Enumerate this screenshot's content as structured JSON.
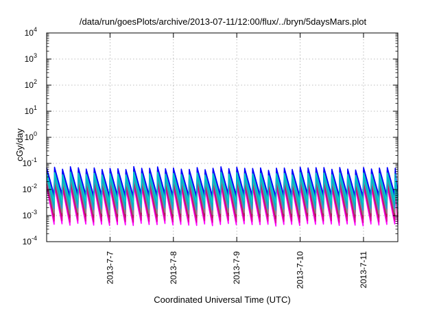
{
  "chart_data": {
    "type": "line",
    "title": "/data/run/goesPlots/archive/2013-07-11/12:00/flux/../bryn/5daysMars.plot",
    "xlabel": "Coordinated Universal Time (UTC)",
    "ylabel": "cGy/day",
    "xlim": [
      "2013-07-06 00:00",
      "2013-07-11 13:00"
    ],
    "ylim": [
      0.0001,
      10000
    ],
    "yscale": "log",
    "grid": true,
    "x_ticks": [
      "2013-7-7",
      "2013-7-8",
      "2013-7-9",
      "2013-7-10",
      "2013-7-11"
    ],
    "y_ticks": [
      {
        "base": "10",
        "exp": "-4"
      },
      {
        "base": "10",
        "exp": "-3"
      },
      {
        "base": "10",
        "exp": "-2"
      },
      {
        "base": "10",
        "exp": "-1"
      },
      {
        "base": "10",
        "exp": "0"
      },
      {
        "base": "10",
        "exp": "1"
      },
      {
        "base": "10",
        "exp": "2"
      },
      {
        "base": "10",
        "exp": "3"
      },
      {
        "base": "10",
        "exp": "4"
      }
    ],
    "cycle_hours": 3,
    "series": [
      {
        "color": "#ff00ff",
        "peak": 0.012,
        "trough": 0.00045
      },
      {
        "color": "#dd0099",
        "peak": 0.015,
        "trough": 0.0006
      },
      {
        "color": "#aa2255",
        "peak": 0.02,
        "trough": 0.0009
      },
      {
        "color": "#888888",
        "peak": 0.025,
        "trough": 0.0012
      },
      {
        "color": "#2299dd",
        "peak": 0.03,
        "trough": 0.0018
      },
      {
        "color": "#00bbbb",
        "peak": 0.035,
        "trough": 0.0025
      },
      {
        "color": "#cc3300",
        "peak": 0.045,
        "trough": 0.004
      },
      {
        "color": "#3355cc",
        "peak": 0.05,
        "trough": 0.005
      },
      {
        "color": "#0000ff",
        "peak": 0.065,
        "trough": 0.006
      },
      {
        "color": "#00cccc",
        "peak": 0.04,
        "trough": 0.0035
      }
    ]
  }
}
